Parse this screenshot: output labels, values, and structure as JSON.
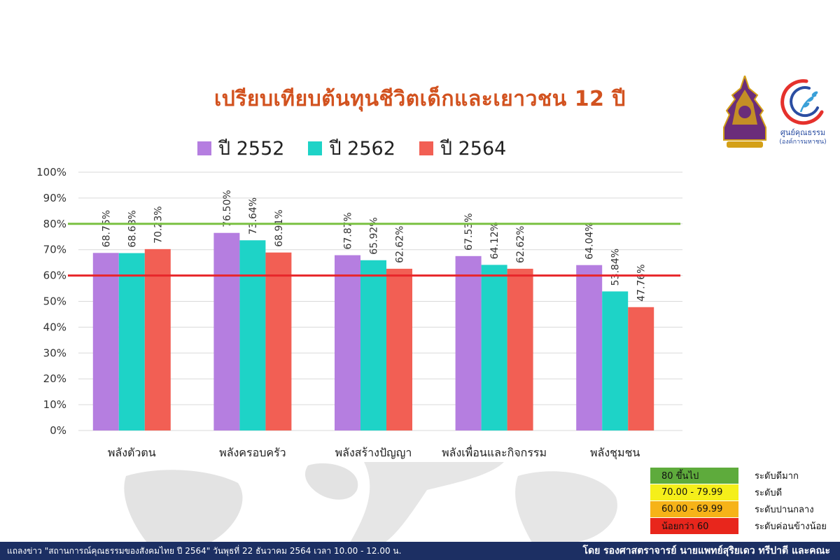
{
  "header": {
    "title": "เปรียบเทียบต้นทุนชีวิตเด็กและเยาวชน 12 ปี"
  },
  "legend": [
    {
      "label": "ปี 2552",
      "color": "#b57ee0"
    },
    {
      "label": "ปี 2562",
      "color": "#1ed3c7"
    },
    {
      "label": "ปี 2564",
      "color": "#f25f54"
    }
  ],
  "chart_data": {
    "type": "bar",
    "title": "เปรียบเทียบต้นทุนชีวิตเด็กและเยาวชน 12 ปี",
    "categories": [
      "พลังตัวตน",
      "พลังครอบครัว",
      "พลังสร้างปัญญา",
      "พลังเพื่อนและกิจกรรม",
      "พลังชุมชน"
    ],
    "series": [
      {
        "name": "ปี 2552",
        "values": [
          68.75,
          76.5,
          67.87,
          67.53,
          64.04
        ],
        "color": "#b57ee0"
      },
      {
        "name": "ปี 2562",
        "values": [
          68.68,
          73.64,
          65.92,
          64.12,
          53.84
        ],
        "color": "#1ed3c7"
      },
      {
        "name": "ปี 2564",
        "values": [
          70.23,
          68.91,
          62.62,
          62.62,
          47.76
        ],
        "color": "#f25f54"
      }
    ],
    "data_labels": [
      [
        "68.75%",
        "76.50%",
        "67.87%",
        "67.53%",
        "64.04%"
      ],
      [
        "68.68%",
        "73.64%",
        "65.92%",
        "64.12%",
        "53.84%"
      ],
      [
        "70.23%",
        "68.91%",
        "62.62%",
        "62.62%",
        "47.76%"
      ]
    ],
    "yticks": [
      "0%",
      "10%",
      "20%",
      "30%",
      "40%",
      "50%",
      "60%",
      "70%",
      "80%",
      "90%",
      "100%"
    ],
    "ylim": [
      0,
      100
    ],
    "grid": true,
    "legend_position": "top",
    "reference_lines": [
      {
        "value": 80,
        "color": "#7ac142"
      },
      {
        "value": 60,
        "color": "#e8262a"
      }
    ]
  },
  "levels": [
    {
      "range": "80 ขึ้นไป",
      "desc": "ระดับดีมาก",
      "color": "#5eab3c"
    },
    {
      "range": "70.00 - 79.99",
      "desc": "ระดับดี",
      "color": "#f5ef1a"
    },
    {
      "range": "60.00 - 69.99",
      "desc": "ระดับปานกลาง",
      "color": "#f6b318"
    },
    {
      "range": "น้อยกว่า 60",
      "desc": "ระดับค่อนข้างน้อย",
      "color": "#e8261c"
    }
  ],
  "logos": {
    "right_text": "ศูนย์คุณธรรม",
    "right_subtext": "(องค์การมหาชน)"
  },
  "footer": {
    "left": "แถลงข่าว \"สถานการณ์คุณธรรมของสังคมไทย ปี 2564\" วันพุธที่ 22 ธันวาคม 2564 เวลา 10.00 - 12.00 น.",
    "right": "โดย รองศาสตราจารย์ นายแพทย์สุริยเดว ทรีปาตี และคณะ"
  }
}
